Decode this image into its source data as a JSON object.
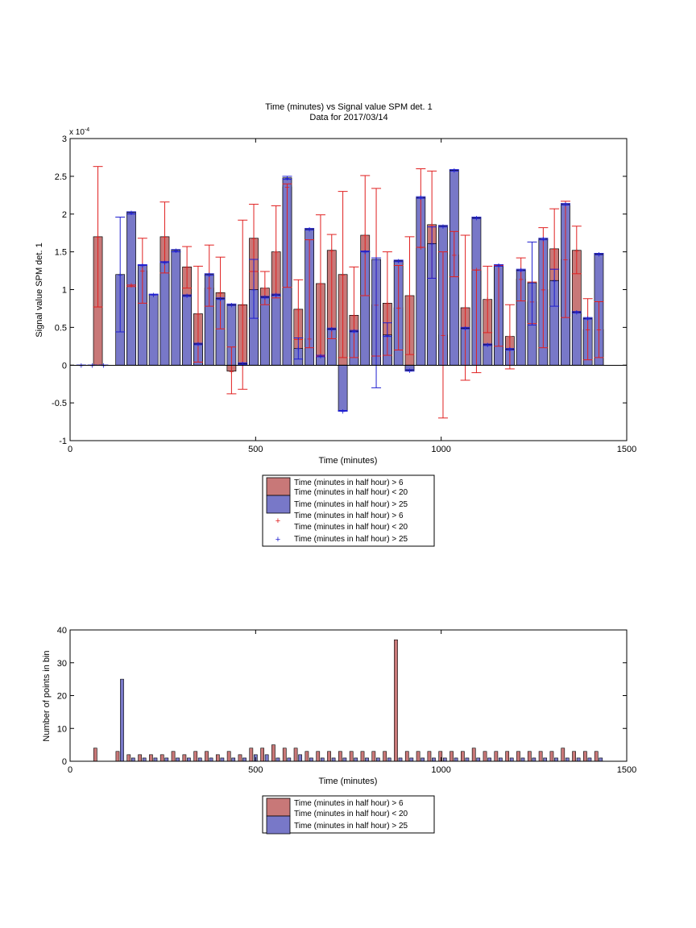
{
  "colors": {
    "red_fill": "#c87878",
    "blue_fill": "#7878c8",
    "red_err": "#e02020",
    "blue_err": "#1f1fd0",
    "bar_edge": "#000000"
  },
  "chart_data": [
    {
      "type": "bar",
      "title": "Time (minutes) vs Signal value SPM det. 1",
      "subtitle": "Data for 2017/03/14",
      "xlabel": "Time (minutes)",
      "ylabel": "Signal value SPM det. 1",
      "exponent_label": "x 10",
      "exponent_power": "-4",
      "xlim": [
        0,
        1500
      ],
      "ylim": [
        -1,
        3
      ],
      "xticks": [
        "0",
        "500",
        "1000",
        "1500"
      ],
      "yticks": [
        "-1",
        "-0.5",
        "0",
        "0.5",
        "1",
        "1.5",
        "2",
        "2.5",
        "3"
      ],
      "legend": {
        "placement": "bottom-center",
        "entries": [
          {
            "kind": "bar",
            "color": "red",
            "lines": [
              "Time (minutes in half hour) > 6",
              "Time (minutes in half hour) < 20"
            ]
          },
          {
            "kind": "bar",
            "color": "blue",
            "lines": [
              "Time (minutes in half hour) > 25"
            ]
          },
          {
            "kind": "plus",
            "color": "red",
            "lines": [
              "Time (minutes in half hour) > 6",
              "Time (minutes in half hour) < 20"
            ]
          },
          {
            "kind": "plus",
            "color": "blue",
            "lines": [
              "Time (minutes in half hour) > 25"
            ]
          }
        ]
      },
      "series": [
        {
          "color": "red",
          "x": [
            75,
            165,
            195,
            255,
            315,
            345,
            375,
            405,
            435,
            465,
            495,
            525,
            555,
            585,
            615,
            645,
            675,
            705,
            735,
            765,
            795,
            825,
            855,
            885,
            915,
            945,
            975,
            1005,
            1035,
            1065,
            1095,
            1125,
            1155,
            1185,
            1215,
            1245,
            1275,
            1305,
            1335,
            1365,
            1395,
            1425
          ],
          "values": [
            1.7,
            1.06,
            1.25,
            1.7,
            1.3,
            0.68,
            1.02,
            0.96,
            -0.08,
            0.8,
            1.68,
            1.02,
            1.5,
            2.36,
            0.74,
            0.35,
            1.08,
            1.52,
            1.2,
            0.66,
            1.72,
            0.8,
            0.82,
            0.76,
            0.92,
            1.56,
            1.86,
            0.4,
            1.46,
            0.76,
            1.26,
            0.87,
            1.32,
            0.38,
            1.14,
            0.84,
            1.0,
            1.54,
            1.4,
            1.52,
            0.47,
            0.47
          ],
          "err_low": [
            0.77,
            1.04,
            0.82,
            1.22,
            1.02,
            0.04,
            0.78,
            0.48,
            -0.38,
            -0.32,
            1.24,
            0.8,
            0.89,
            1.03,
            0.34,
            0.23,
            0.12,
            0.35,
            0.1,
            0.1,
            0.92,
            0.12,
            0.13,
            0.2,
            0.14,
            1.56,
            1.15,
            -0.7,
            1.17,
            -0.2,
            -0.1,
            0.43,
            0.25,
            -0.05,
            0.85,
            0.55,
            0.23,
            1.27,
            0.63,
            1.21,
            0.07,
            0.1
          ],
          "err_high": [
            2.63,
            1.06,
            1.68,
            2.16,
            1.57,
            1.31,
            1.59,
            1.43,
            0.24,
            1.92,
            2.13,
            1.24,
            2.11,
            2.4,
            1.13,
            1.66,
            1.99,
            1.73,
            2.3,
            1.3,
            2.51,
            2.34,
            1.5,
            1.32,
            1.7,
            2.6,
            2.57,
            1.5,
            1.77,
            1.72,
            1.26,
            1.31,
            1.32,
            0.8,
            1.42,
            1.1,
            1.82,
            2.07,
            2.17,
            1.84,
            0.88,
            0.84
          ]
        },
        {
          "color": "blue",
          "x": [
            30,
            60,
            90,
            135,
            165,
            195,
            225,
            255,
            285,
            315,
            345,
            375,
            405,
            435,
            465,
            495,
            525,
            555,
            585,
            615,
            645,
            675,
            705,
            735,
            765,
            795,
            825,
            855,
            885,
            915,
            945,
            975,
            1005,
            1035,
            1065,
            1095,
            1125,
            1155,
            1185,
            1215,
            1245,
            1275,
            1305,
            1335,
            1365,
            1395,
            1425
          ],
          "values": [
            0,
            0,
            0,
            1.2,
            2.02,
            1.32,
            0.93,
            1.36,
            1.52,
            0.92,
            0.28,
            1.2,
            0.88,
            0.8,
            0.02,
            1.0,
            0.9,
            0.93,
            2.48,
            0.22,
            1.8,
            0.12,
            0.48,
            -0.61,
            0.45,
            1.5,
            1.4,
            0.4,
            1.38,
            -0.07,
            2.22,
            1.61,
            1.84,
            2.58,
            0.49,
            1.95,
            0.27,
            1.32,
            0.21,
            1.26,
            1.09,
            1.67,
            1.12,
            2.13,
            0.7,
            0.62,
            1.47
          ],
          "err_low": [
            0,
            0,
            0,
            0.44,
            2.0,
            1.32,
            0.93,
            1.36,
            1.5,
            0.91,
            0.27,
            1.19,
            0.87,
            0.79,
            0.01,
            0.62,
            0.89,
            0.92,
            2.46,
            0.08,
            1.79,
            0.11,
            0.47,
            -0.61,
            0.44,
            1.5,
            -0.3,
            0.38,
            1.37,
            -0.08,
            2.21,
            1.15,
            1.83,
            2.57,
            0.48,
            1.94,
            0.26,
            1.31,
            0.2,
            1.25,
            0.53,
            1.66,
            0.78,
            2.12,
            0.69,
            0.61,
            1.46
          ],
          "err_high": [
            0,
            0,
            0,
            1.96,
            2.03,
            1.33,
            0.94,
            1.37,
            1.53,
            0.93,
            0.29,
            1.21,
            0.89,
            0.81,
            0.03,
            1.4,
            0.91,
            0.94,
            2.5,
            0.36,
            1.81,
            0.13,
            0.49,
            -0.6,
            0.46,
            1.51,
            1.42,
            0.56,
            1.39,
            -0.06,
            2.23,
            1.83,
            1.85,
            2.59,
            0.5,
            1.96,
            0.28,
            1.33,
            0.22,
            1.27,
            1.63,
            1.68,
            1.27,
            2.14,
            0.71,
            0.63,
            1.48
          ]
        }
      ]
    },
    {
      "type": "bar",
      "title": "",
      "xlabel": "Time (minutes)",
      "ylabel": "Number of points in bin",
      "xlim": [
        0,
        1500
      ],
      "ylim": [
        0,
        40
      ],
      "xticks": [
        "0",
        "500",
        "1000",
        "1500"
      ],
      "yticks": [
        "0",
        "10",
        "20",
        "30",
        "40"
      ],
      "legend": {
        "placement": "bottom-center",
        "entries": [
          {
            "kind": "bar",
            "color": "red",
            "lines": [
              "Time (minutes in half hour) > 6",
              "Time (minutes in half hour) < 20"
            ]
          },
          {
            "kind": "bar",
            "color": "blue",
            "lines": [
              "Time (minutes in half hour) > 25"
            ]
          }
        ]
      },
      "series": [
        {
          "color": "red",
          "x": [
            68,
            128,
            158,
            188,
            218,
            248,
            278,
            308,
            338,
            368,
            398,
            428,
            458,
            488,
            518,
            548,
            578,
            608,
            638,
            668,
            698,
            728,
            758,
            788,
            818,
            848,
            878,
            908,
            938,
            968,
            998,
            1028,
            1058,
            1088,
            1118,
            1148,
            1178,
            1208,
            1238,
            1268,
            1298,
            1328,
            1358,
            1388,
            1418
          ],
          "values": [
            4,
            3,
            2,
            2,
            2,
            2,
            3,
            2,
            3,
            3,
            2,
            3,
            2,
            4,
            4,
            5,
            4,
            4,
            3,
            3,
            3,
            3,
            3,
            3,
            3,
            3,
            37,
            3,
            3,
            3,
            3,
            3,
            3,
            4,
            3,
            3,
            3,
            3,
            3,
            3,
            3,
            4,
            3,
            3,
            3
          ]
        },
        {
          "color": "blue",
          "x": [
            140,
            170,
            200,
            230,
            260,
            290,
            320,
            350,
            380,
            410,
            440,
            470,
            500,
            530,
            560,
            590,
            620,
            650,
            680,
            710,
            740,
            770,
            800,
            830,
            860,
            890,
            920,
            950,
            980,
            1010,
            1040,
            1070,
            1100,
            1130,
            1160,
            1190,
            1220,
            1250,
            1280,
            1310,
            1340,
            1370,
            1400,
            1430
          ],
          "values": [
            25,
            1,
            1,
            1,
            1,
            1,
            1,
            1,
            1,
            1,
            1,
            1,
            2,
            2,
            1,
            1,
            2,
            1,
            1,
            1,
            1,
            1,
            1,
            1,
            1,
            1,
            1,
            1,
            1,
            1,
            1,
            1,
            1,
            1,
            1,
            1,
            1,
            1,
            1,
            1,
            1,
            1,
            1,
            1
          ]
        }
      ]
    }
  ]
}
